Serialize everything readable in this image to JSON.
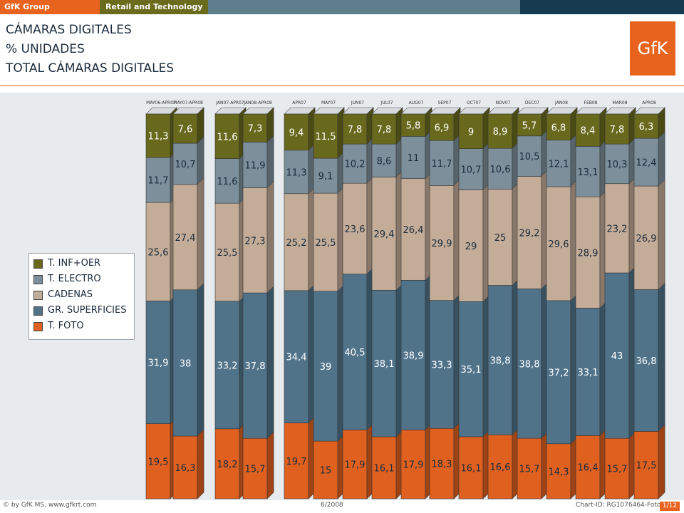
{
  "header": {
    "brand_left": "GfK Group",
    "brand_right": "Retail and Technology",
    "logo_text": "GfK"
  },
  "titles": {
    "line1": "CÁMARAS DIGITALES",
    "line2": "% UNIDADES",
    "line3": "TOTAL CÁMARAS DIGITALES"
  },
  "chart_data": {
    "type": "bar",
    "stacked": true,
    "percent_stacked": true,
    "categories": [
      "MAY06-APR07",
      "MAY07-APR08",
      "JAN07-APR07",
      "JAN08-APR08",
      "APR07",
      "MAY07",
      "JUN07",
      "JUL07",
      "AUG07",
      "SEP07",
      "OCT07",
      "NOV07",
      "DEC07",
      "JAN08",
      "FEB08",
      "MAR08",
      "APR08"
    ],
    "series": [
      {
        "name": "T. FOTO",
        "color": "#e0601f",
        "values": [
          19.5,
          16.3,
          18.2,
          15.7,
          19.7,
          15,
          17.9,
          16.1,
          17.9,
          18.3,
          16.1,
          16.6,
          15.7,
          14.3,
          16.4,
          15.7,
          17.5
        ]
      },
      {
        "name": "GR. SUPERFICIES",
        "color": "#50738a",
        "values": [
          31.9,
          38,
          33.2,
          37.8,
          34.4,
          39,
          40.5,
          38.1,
          38.9,
          33.3,
          35.1,
          38.8,
          38.8,
          37.2,
          33.1,
          43,
          36.8
        ]
      },
      {
        "name": "CADENAS",
        "color": "#c3ac98",
        "values": [
          25.6,
          27.4,
          25.5,
          27.3,
          25.2,
          25.5,
          23.6,
          29.4,
          26.4,
          29.9,
          29,
          25,
          29.2,
          29.6,
          28.9,
          23.2,
          26.9
        ]
      },
      {
        "name": "T. ELECTRO",
        "color": "#7c8f9a",
        "values": [
          11.7,
          10.7,
          11.6,
          11.9,
          11.3,
          9.1,
          10.2,
          8.6,
          11,
          11.7,
          10.7,
          10.6,
          10.5,
          12.1,
          13.1,
          10.3,
          12.4
        ]
      },
      {
        "name": "T. INF+OER",
        "color": "#69691e",
        "values": [
          11.3,
          7.6,
          11.6,
          7.3,
          9.4,
          11.5,
          7.8,
          7.8,
          5.8,
          6.9,
          9,
          8.9,
          5.7,
          6.8,
          8.4,
          7.8,
          6.3
        ]
      }
    ],
    "legend_position": "left",
    "ylim": [
      0,
      100
    ],
    "grid": false
  },
  "legend": {
    "items": [
      {
        "label": "T. INF+OER",
        "color": "#69691e"
      },
      {
        "label": "T. ELECTRO",
        "color": "#7c8f9a"
      },
      {
        "label": "CADENAS",
        "color": "#c3ac98"
      },
      {
        "label": "GR. SUPERFICIES",
        "color": "#50738a"
      },
      {
        "label": "T. FOTO",
        "color": "#e0601f"
      }
    ]
  },
  "footer": {
    "left": "© by GfK MS, www.gfkrt.com",
    "date": "6/2008",
    "chart_id": "Chart-ID: RG1076464-Foto Ca...",
    "page": "1/12"
  }
}
